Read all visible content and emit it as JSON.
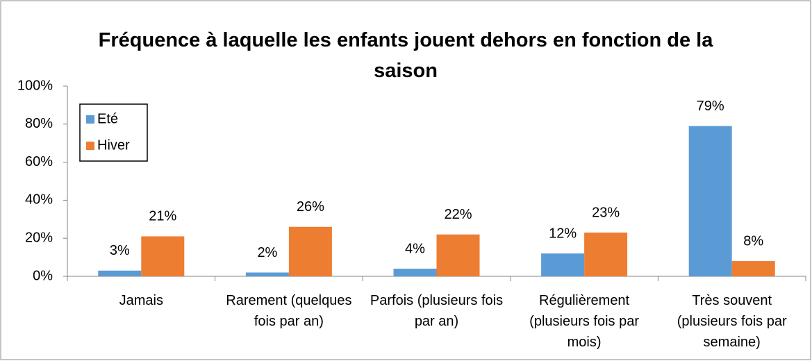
{
  "chart_data": {
    "type": "bar",
    "title": "Fréquence à laquelle les enfants jouent dehors en fonction de la saison",
    "categories": [
      "Jamais",
      "Rarement (quelques fois par an)",
      "Parfois (plusieurs fois par an)",
      "Régulièrement (plusieurs fois par mois)",
      "Très souvent (plusieurs fois par semaine)"
    ],
    "series": [
      {
        "name": "Eté",
        "color": "#5b9bd5",
        "values": [
          3,
          2,
          4,
          12,
          79
        ],
        "value_labels": [
          "3%",
          "2%",
          "4%",
          "12%",
          "79%"
        ]
      },
      {
        "name": "Hiver",
        "color": "#ed7d31",
        "values": [
          21,
          26,
          22,
          23,
          8
        ],
        "value_labels": [
          "21%",
          "26%",
          "22%",
          "23%",
          "8%"
        ]
      }
    ],
    "ylim": [
      0,
      100
    ],
    "yticks": [
      {
        "value": 0,
        "label": "0%"
      },
      {
        "value": 20,
        "label": "20%"
      },
      {
        "value": 40,
        "label": "40%"
      },
      {
        "value": 60,
        "label": "60%"
      },
      {
        "value": 80,
        "label": "80%"
      },
      {
        "value": 100,
        "label": "100%"
      }
    ],
    "grid": false,
    "legend": "upper left"
  }
}
